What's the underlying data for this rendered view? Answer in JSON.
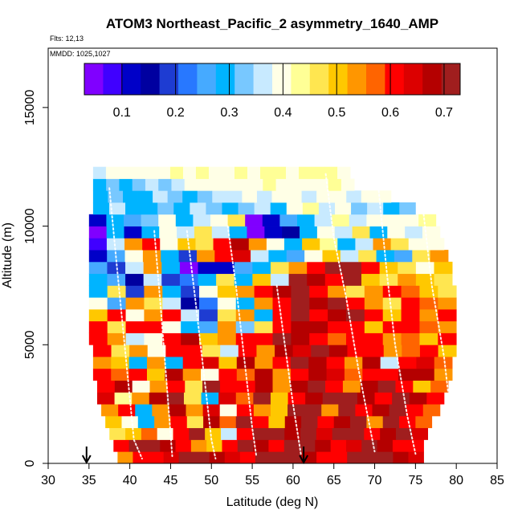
{
  "chart_data": {
    "type": "heatmap",
    "title": "ATOM3 Northeast_Pacific_2 asymmetry_1640_AMP",
    "flights_label": "Flts: 12,13",
    "dates_label": "MMDD: 1025,1027",
    "xlabel": "Latitude (deg N)",
    "ylabel": "Altitude (m)",
    "xlim": [
      30,
      85
    ],
    "ylim": [
      0,
      17500
    ],
    "x_ticks": [
      30,
      35,
      40,
      45,
      50,
      55,
      60,
      65,
      70,
      75,
      80,
      85
    ],
    "y_ticks": [
      0,
      5000,
      10000,
      15000
    ],
    "colorbar": {
      "range": [
        0.03,
        0.73
      ],
      "ticks": [
        0.1,
        0.2,
        0.3,
        0.4,
        0.5,
        0.6,
        0.7
      ],
      "palette": [
        "#8000ff",
        "#4000ff",
        "#0000c8",
        "#0000a0",
        "#1e3cd2",
        "#2878ff",
        "#46aaff",
        "#00b4ff",
        "#78c8ff",
        "#c8eaff",
        "#ffffe6",
        "#ffff96",
        "#ffe650",
        "#ffc800",
        "#ff9600",
        "#ff6400",
        "#ff0000",
        "#dc0000",
        "#b40000",
        "#a01e1e"
      ]
    },
    "arrows_latitude": [
      34.7,
      61.3
    ],
    "layers": [
      {
        "alt": 250,
        "lat0": 38.5,
        "lat1": 76,
        "v": [
          0.55,
          0.6,
          0.62,
          0.65,
          0.7,
          0.72,
          0.68,
          0.65,
          0.6,
          0.7,
          0.72,
          0.7,
          0.66,
          0.6,
          0.62,
          0.7,
          0.72,
          0.7,
          0.68,
          0.64
        ]
      },
      {
        "alt": 750,
        "lat0": 38,
        "lat1": 76,
        "v": [
          0.62,
          0.7,
          0.72,
          0.68,
          0.6,
          0.55,
          0.5,
          0.62,
          0.7,
          0.66,
          0.6,
          0.7,
          0.72,
          0.68,
          0.6,
          0.65,
          0.7,
          0.66,
          0.62,
          0.6
        ]
      },
      {
        "alt": 1250,
        "lat0": 37.5,
        "lat1": 76.5,
        "v": [
          0.45,
          0.5,
          0.58,
          0.4,
          0.62,
          0.7,
          0.5,
          0.35,
          0.6,
          0.7,
          0.72,
          0.68,
          0.7,
          0.65,
          0.7,
          0.72,
          0.6,
          0.66,
          0.7,
          0.65
        ]
      },
      {
        "alt": 1750,
        "lat0": 37,
        "lat1": 77,
        "v": [
          0.5,
          0.4,
          0.3,
          0.55,
          0.62,
          0.45,
          0.68,
          0.58,
          0.7,
          0.62,
          0.5,
          0.66,
          0.7,
          0.6,
          0.68,
          0.7,
          0.55,
          0.7,
          0.62,
          0.56
        ]
      },
      {
        "alt": 2250,
        "lat0": 36.5,
        "lat1": 78,
        "v": [
          0.55,
          0.62,
          0.3,
          0.55,
          0.66,
          0.52,
          0.64,
          0.4,
          0.62,
          0.55,
          0.5,
          0.7,
          0.72,
          0.55,
          0.7,
          0.6,
          0.66,
          0.7,
          0.62,
          0.58
        ]
      },
      {
        "alt": 2750,
        "lat0": 36,
        "lat1": 78.5,
        "v": [
          0.65,
          0.42,
          0.55,
          0.68,
          0.7,
          0.45,
          0.3,
          0.64,
          0.58,
          0.7,
          0.5,
          0.62,
          0.68,
          0.72,
          0.7,
          0.66,
          0.6,
          0.7,
          0.66,
          0.62
        ]
      },
      {
        "alt": 3250,
        "lat0": 36,
        "lat1": 79,
        "v": [
          0.6,
          0.66,
          0.4,
          0.55,
          0.62,
          0.48,
          0.7,
          0.6,
          0.62,
          0.68,
          0.55,
          0.66,
          0.7,
          0.62,
          0.55,
          0.66,
          0.7,
          0.6,
          0.5,
          0.58
        ]
      },
      {
        "alt": 3750,
        "lat0": 35.5,
        "lat1": 79.5,
        "v": [
          0.6,
          0.58,
          0.62,
          0.5,
          0.66,
          0.55,
          0.4,
          0.62,
          0.58,
          0.66,
          0.55,
          0.6,
          0.68,
          0.65,
          0.56,
          0.62,
          0.6,
          0.68,
          0.66,
          0.55
        ]
      },
      {
        "alt": 4250,
        "lat0": 35.5,
        "lat1": 79.5,
        "v": [
          0.52,
          0.5,
          0.3,
          0.55,
          0.28,
          0.62,
          0.64,
          0.5,
          0.66,
          0.55,
          0.62,
          0.7,
          0.68,
          0.62,
          0.55,
          0.66,
          0.35,
          0.62,
          0.64,
          0.56
        ]
      },
      {
        "alt": 4750,
        "lat0": 35.5,
        "lat1": 80,
        "v": [
          0.62,
          0.48,
          0.55,
          0.38,
          0.62,
          0.6,
          0.45,
          0.35,
          0.62,
          0.55,
          0.68,
          0.65,
          0.7,
          0.66,
          0.6,
          0.62,
          0.55,
          0.58,
          0.62,
          0.5
        ]
      },
      {
        "alt": 5250,
        "lat0": 35,
        "lat1": 80,
        "v": [
          0.62,
          0.55,
          0.35,
          0.4,
          0.62,
          0.68,
          0.5,
          0.55,
          0.62,
          0.6,
          0.7,
          0.66,
          0.62,
          0.56,
          0.62,
          0.6,
          0.55,
          0.58,
          0.5,
          0.6
        ]
      },
      {
        "alt": 5750,
        "lat0": 35,
        "lat1": 80,
        "v": [
          0.62,
          0.45,
          0.62,
          0.6,
          0.4,
          0.3,
          0.25,
          0.55,
          0.32,
          0.45,
          0.62,
          0.68,
          0.66,
          0.62,
          0.6,
          0.5,
          0.62,
          0.6,
          0.58,
          0.55
        ]
      },
      {
        "alt": 6250,
        "lat0": 35,
        "lat1": 80,
        "v": [
          0.5,
          0.62,
          0.4,
          0.55,
          0.6,
          0.35,
          0.2,
          0.45,
          0.55,
          0.28,
          0.62,
          0.7,
          0.62,
          0.66,
          0.7,
          0.62,
          0.5,
          0.6,
          0.55,
          0.6
        ]
      },
      {
        "alt": 6750,
        "lat0": 35,
        "lat1": 80,
        "v": [
          0.4,
          0.25,
          0.55,
          0.48,
          0.35,
          0.15,
          0.22,
          0.4,
          0.3,
          0.55,
          0.62,
          0.7,
          0.66,
          0.7,
          0.62,
          0.55,
          0.45,
          0.62,
          0.58,
          0.55
        ]
      },
      {
        "alt": 7250,
        "lat0": 35,
        "lat1": 80,
        "v": [
          0.3,
          0.45,
          0.2,
          0.55,
          0.3,
          0.18,
          0.4,
          0.5,
          0.55,
          0.62,
          0.68,
          0.7,
          0.62,
          0.55,
          0.45,
          0.55,
          0.62,
          0.58,
          0.5,
          0.45
        ]
      },
      {
        "alt": 7750,
        "lat0": 35,
        "lat1": 79.5,
        "v": [
          0.3,
          0.25,
          0.15,
          0.35,
          0.2,
          0.22,
          0.3,
          0.45,
          0.3,
          0.5,
          0.35,
          0.7,
          0.68,
          0.62,
          0.7,
          0.5,
          0.45,
          0.55,
          0.5,
          0.48
        ]
      },
      {
        "alt": 8250,
        "lat0": 35,
        "lat1": 79.5,
        "v": [
          0.25,
          0.2,
          0.35,
          0.55,
          0.3,
          0.05,
          0.1,
          0.12,
          0.25,
          0.3,
          0.45,
          0.55,
          0.62,
          0.7,
          0.72,
          0.6,
          0.5,
          0.45,
          0.4,
          0.5
        ]
      },
      {
        "alt": 8750,
        "lat0": 35,
        "lat1": 79,
        "v": [
          0.1,
          0.25,
          0.4,
          0.55,
          0.3,
          0.2,
          0.55,
          0.6,
          0.65,
          0.35,
          0.3,
          0.25,
          0.4,
          0.5,
          0.35,
          0.45,
          0.3,
          0.25,
          0.45,
          0.55
        ]
      },
      {
        "alt": 9250,
        "lat0": 35,
        "lat1": 78.5,
        "v": [
          0.08,
          0.35,
          0.55,
          0.62,
          0.4,
          0.5,
          0.45,
          0.6,
          0.68,
          0.55,
          0.4,
          0.3,
          0.5,
          0.42,
          0.3,
          0.35,
          0.55,
          0.45,
          0.4,
          0.38
        ]
      },
      {
        "alt": 9750,
        "lat0": 35,
        "lat1": 78,
        "v": [
          0.05,
          0.3,
          0.1,
          0.28,
          0.4,
          0.35,
          0.45,
          0.35,
          0.3,
          0.05,
          0.1,
          0.15,
          0.3,
          0.4,
          0.35,
          0.45,
          0.3,
          0.4,
          0.35,
          0.4
        ]
      },
      {
        "alt": 10250,
        "lat0": 35,
        "lat1": 77.5,
        "v": [
          0.1,
          0.3,
          0.25,
          0.32,
          0.38,
          0.3,
          0.35,
          0.4,
          0.45,
          0.03,
          0.12,
          0.25,
          0.3,
          0.35,
          0.42,
          0.35,
          0.4,
          0.38,
          0.4,
          0.42
        ]
      },
      {
        "alt": 10750,
        "lat0": 35.5,
        "lat1": 75,
        "v": [
          0.3,
          0.35,
          0.3,
          0.28,
          0.32,
          0.3,
          0.35,
          0.32,
          0.3,
          0.32,
          0.35,
          0.3,
          0.38,
          0.42,
          0.36,
          0.4,
          0.32,
          0.35,
          0.3,
          0.33
        ]
      },
      {
        "alt": 11250,
        "lat0": 35.5,
        "lat1": 72,
        "v": [
          0.3,
          0.32,
          0.28,
          0.3,
          0.35,
          0.32,
          0.3,
          0.34,
          0.36,
          0.35,
          0.38,
          0.36,
          0.4,
          0.38,
          0.37,
          0.4,
          0.38,
          0.36,
          0.38,
          0.4
        ]
      },
      {
        "alt": 11750,
        "lat0": 35.5,
        "lat1": 67.5,
        "v": [
          0.3,
          0.32,
          0.3,
          0.33,
          0.35,
          0.34,
          0.36,
          0.38,
          0.4,
          0.38,
          0.39,
          0.41,
          0.4,
          0.42,
          0.41,
          0.4,
          0.39,
          0.41,
          0.42,
          0.4
        ]
      },
      {
        "alt": 12250,
        "lat0": 35.5,
        "lat1": 67,
        "v": [
          0.36,
          0.38,
          0.4,
          0.39,
          0.41,
          0.4,
          0.42,
          0.41,
          0.42,
          0.41,
          0.4,
          0.42,
          0.41,
          0.43,
          0.42,
          0.41,
          0.42,
          0.43,
          0.42,
          0.41
        ]
      }
    ]
  }
}
